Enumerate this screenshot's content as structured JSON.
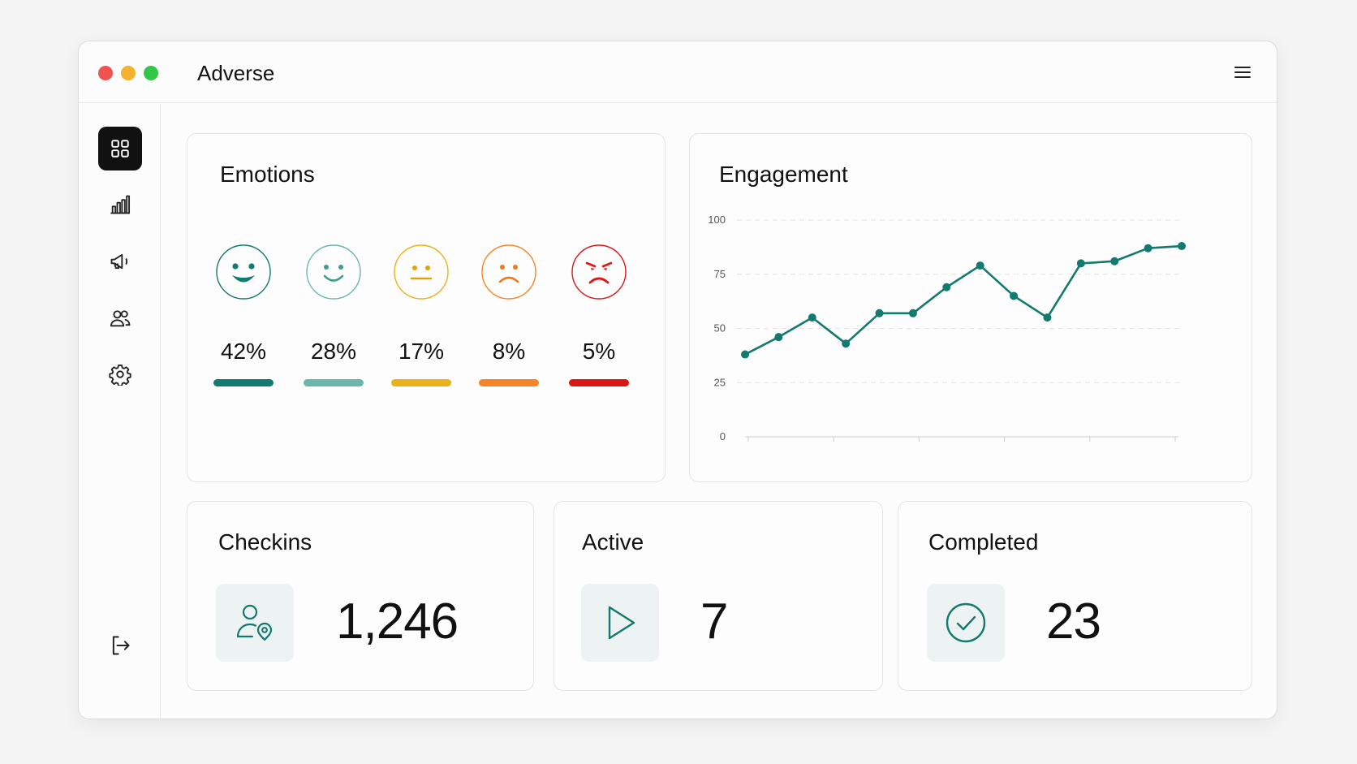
{
  "window": {
    "title": "Adverse"
  },
  "sidebar": {
    "items": [
      {
        "name": "dashboard",
        "icon": "grid-icon",
        "active": true
      },
      {
        "name": "analytics",
        "icon": "bar-chart-icon",
        "active": false
      },
      {
        "name": "campaigns",
        "icon": "megaphone-icon",
        "active": false
      },
      {
        "name": "users",
        "icon": "users-icon",
        "active": false
      },
      {
        "name": "settings",
        "icon": "gear-icon",
        "active": false
      }
    ],
    "logout_icon": "logout-icon"
  },
  "emotions": {
    "title": "Emotions",
    "items": [
      {
        "icon": "very-happy-face-icon",
        "percent": "42%",
        "value": 42,
        "color": "#137a70"
      },
      {
        "icon": "happy-face-icon",
        "percent": "28%",
        "value": 28,
        "color": "#6cb7ad"
      },
      {
        "icon": "neutral-face-icon",
        "percent": "17%",
        "value": 17,
        "color": "#eab218"
      },
      {
        "icon": "sad-face-icon",
        "percent": "8%",
        "value": 8,
        "color": "#f68528"
      },
      {
        "icon": "angry-face-icon",
        "percent": "5%",
        "value": 5,
        "color": "#dc1515"
      }
    ]
  },
  "engagement": {
    "title": "Engagement",
    "chart_data": {
      "type": "line",
      "title": "Engagement",
      "xlabel": "",
      "ylabel": "",
      "ylim": [
        0,
        100
      ],
      "yticks": [
        0,
        25,
        50,
        75,
        100
      ],
      "x": [
        1,
        2,
        3,
        4,
        5,
        6,
        7,
        8,
        9,
        10,
        11,
        12,
        13,
        14
      ],
      "values": [
        38,
        46,
        55,
        43,
        57,
        57,
        69,
        79,
        65,
        55,
        80,
        81,
        87,
        88
      ],
      "grid": true,
      "color": "#137a70"
    }
  },
  "stats": [
    {
      "title": "Checkins",
      "value": "1,246",
      "icon": "user-location-icon"
    },
    {
      "title": "Active",
      "value": "7",
      "icon": "play-icon"
    },
    {
      "title": "Completed",
      "value": "23",
      "icon": "check-circle-icon"
    }
  ],
  "colors": {
    "accent": "#137a70",
    "icon_bg": "#edf3f2",
    "active_nav": "#111111"
  }
}
